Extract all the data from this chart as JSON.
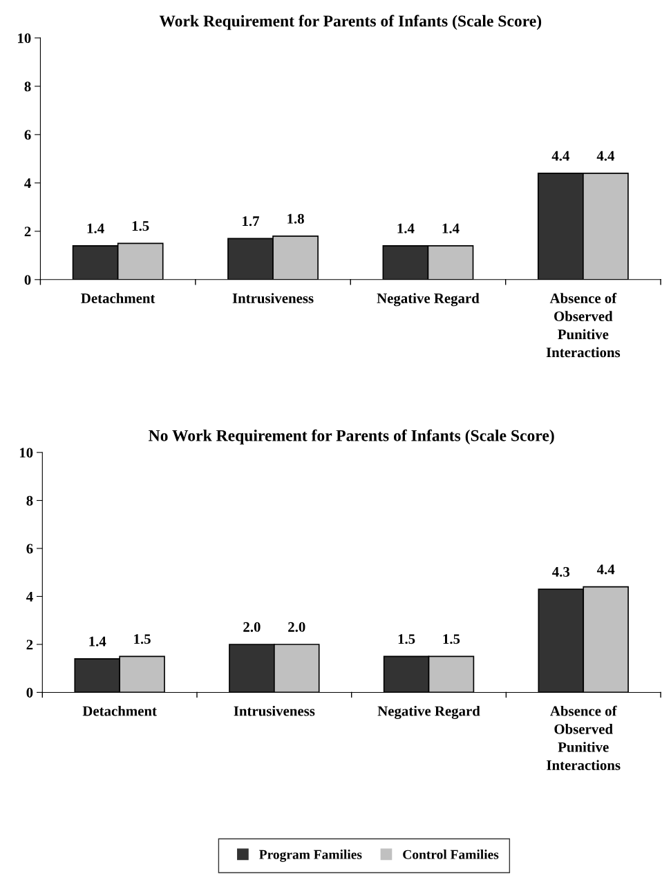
{
  "chart_data": [
    {
      "type": "bar",
      "title": "Work Requirement for Parents of Infants (Scale Score)",
      "categories": [
        "Detachment",
        "Intrusiveness",
        "Negative Regard",
        "Absence of\nObserved\nPunitive\nInteractions"
      ],
      "series": [
        {
          "name": "Program Families",
          "color": "#333333",
          "values": [
            1.4,
            1.7,
            1.4,
            4.4
          ],
          "value_labels": [
            "1.4",
            "1.7",
            "1.4",
            "4.4"
          ]
        },
        {
          "name": "Control Families",
          "color": "#c0c0c0",
          "values": [
            1.5,
            1.8,
            1.4,
            4.4
          ],
          "value_labels": [
            "1.5",
            "1.8",
            "1.4",
            "4.4"
          ]
        }
      ],
      "ylim": [
        0,
        10
      ],
      "yticks": [
        0,
        2,
        4,
        6,
        8,
        10
      ],
      "grid": false,
      "legend": "bottom"
    },
    {
      "type": "bar",
      "title": "No Work Requirement for Parents of Infants (Scale Score)",
      "categories": [
        "Detachment",
        "Intrusiveness",
        "Negative Regard",
        "Absence of\nObserved\nPunitive\nInteractions"
      ],
      "series": [
        {
          "color": "#333333",
          "values": [
            1.4,
            2.0,
            1.5,
            4.3
          ],
          "value_labels": [
            "1.4",
            "2.0",
            "1.5",
            "4.3"
          ]
        },
        {
          "color": "#c0c0c0",
          "values": [
            1.5,
            2.0,
            1.5,
            4.4
          ],
          "value_labels": [
            "1.5",
            "2.0",
            "1.5",
            "4.4"
          ]
        }
      ],
      "ylim": [
        0,
        10
      ],
      "yticks": [
        0,
        2,
        4,
        6,
        8,
        10
      ],
      "grid": false
    }
  ]
}
